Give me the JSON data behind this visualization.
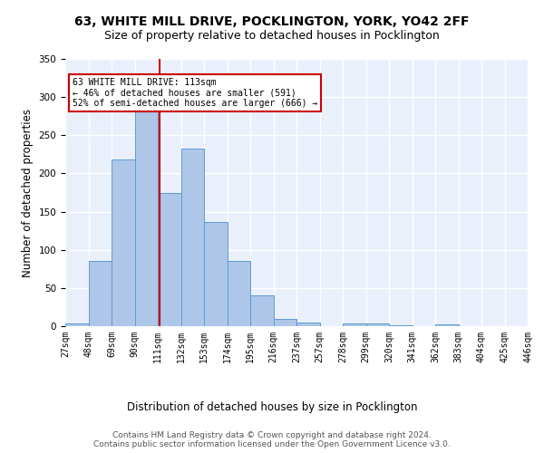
{
  "title": "63, WHITE MILL DRIVE, POCKLINGTON, YORK, YO42 2FF",
  "subtitle": "Size of property relative to detached houses in Pocklington",
  "xlabel_bottom": "Distribution of detached houses by size in Pocklington",
  "ylabel": "Number of detached properties",
  "bar_values": [
    3,
    86,
    218,
    283,
    174,
    232,
    137,
    85,
    40,
    10,
    5,
    0,
    3,
    3,
    1,
    0,
    2
  ],
  "bin_labels": [
    "27sqm",
    "48sqm",
    "69sqm",
    "90sqm",
    "111sqm",
    "132sqm",
    "153sqm",
    "174sqm",
    "195sqm",
    "216sqm",
    "237sqm",
    "257sqm",
    "278sqm",
    "299sqm",
    "320sqm",
    "341sqm",
    "362sqm",
    "383sqm",
    "404sqm",
    "425sqm",
    "446sqm"
  ],
  "bar_color": "#aec6e8",
  "bar_edge_color": "#5b9bd5",
  "bg_color": "#eaf0fb",
  "grid_color": "#ffffff",
  "vline_color": "#cc0000",
  "annotation_text": "63 WHITE MILL DRIVE: 113sqm\n← 46% of detached houses are smaller (591)\n52% of semi-detached houses are larger (666) →",
  "annotation_box_color": "#cc0000",
  "footer_text": "Contains HM Land Registry data © Crown copyright and database right 2024.\nContains public sector information licensed under the Open Government Licence v3.0.",
  "ylim": [
    0,
    350
  ],
  "title_fontsize": 10,
  "subtitle_fontsize": 9,
  "ylabel_fontsize": 8.5,
  "tick_fontsize": 7,
  "footer_fontsize": 6.5
}
